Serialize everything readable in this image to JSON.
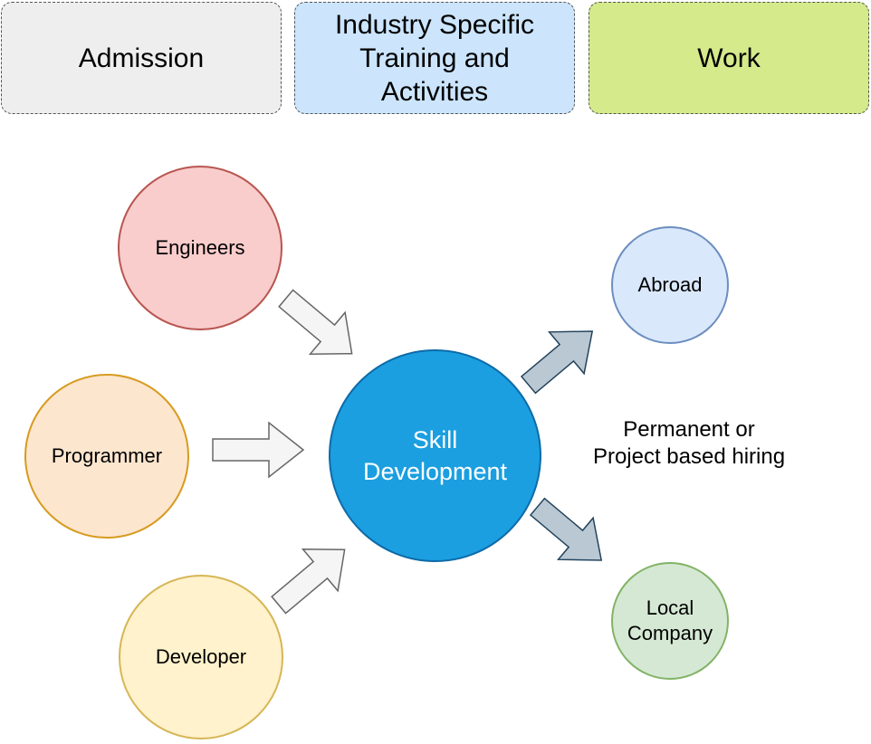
{
  "header": {
    "stages": [
      {
        "label": "Admission",
        "color": "#eeeeee"
      },
      {
        "label": "Industry Specific\nTraining and\nActivities",
        "color": "#cce5fd"
      },
      {
        "label": "Work",
        "color": "#d4ea8b"
      }
    ]
  },
  "inputs": [
    {
      "label": "Engineers",
      "color": "#f8cdcc"
    },
    {
      "label": "Programmer",
      "color": "#fde6ce"
    },
    {
      "label": "Developer",
      "color": "#fff2cc"
    }
  ],
  "center": {
    "label": "Skill\nDevelopment",
    "color": "#1b9fe0"
  },
  "outputs": [
    {
      "label": "Abroad",
      "color": "#dae8fc"
    },
    {
      "label": "Local\nCompany",
      "color": "#d5e8d4"
    }
  ],
  "hiring_note": "Permanent or\nProject based hiring",
  "arrow_colors": {
    "input": "#f5f5f5",
    "output": "#bac8d3"
  }
}
